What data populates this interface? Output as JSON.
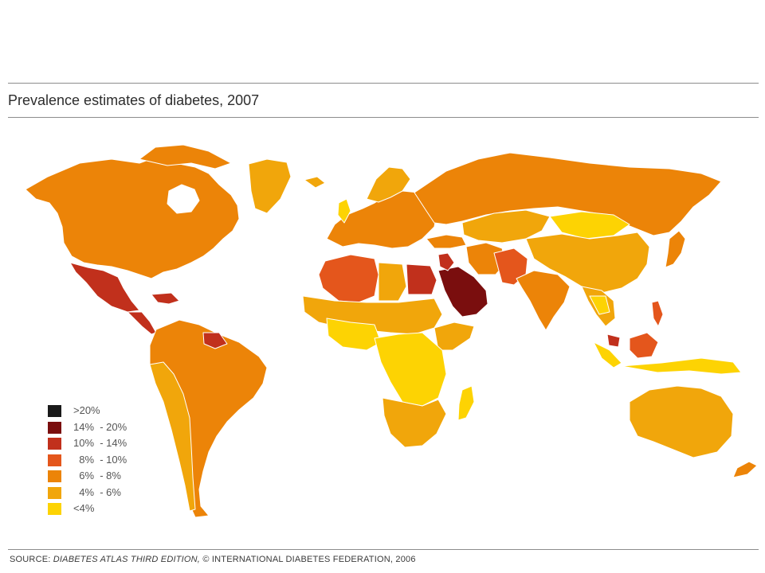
{
  "title": "Prevalence estimates of diabetes, 2007",
  "legend": [
    {
      "label": ">20%",
      "color": "#1a1a1a"
    },
    {
      "label": "14%  - 20%",
      "color": "#7a0e0e"
    },
    {
      "label": "10%  - 14%",
      "color": "#c1301c"
    },
    {
      "label": "  8%  - 10%",
      "color": "#e4561c"
    },
    {
      "label": "  6%  - 8%",
      "color": "#ec8408"
    },
    {
      "label": "  4%  - 6%",
      "color": "#f1a60b"
    },
    {
      "label": "<4%",
      "color": "#fdd303"
    }
  ],
  "source": {
    "prefix": "SOURCE: ",
    "italic": "DIABETES ATLAS THIRD EDITION,",
    "suffix": " © INTERNATIONAL DIABETES FEDERATION, 2006"
  },
  "colors": {
    "rule": "#8c8c8c",
    "border": "#ffffff"
  }
}
